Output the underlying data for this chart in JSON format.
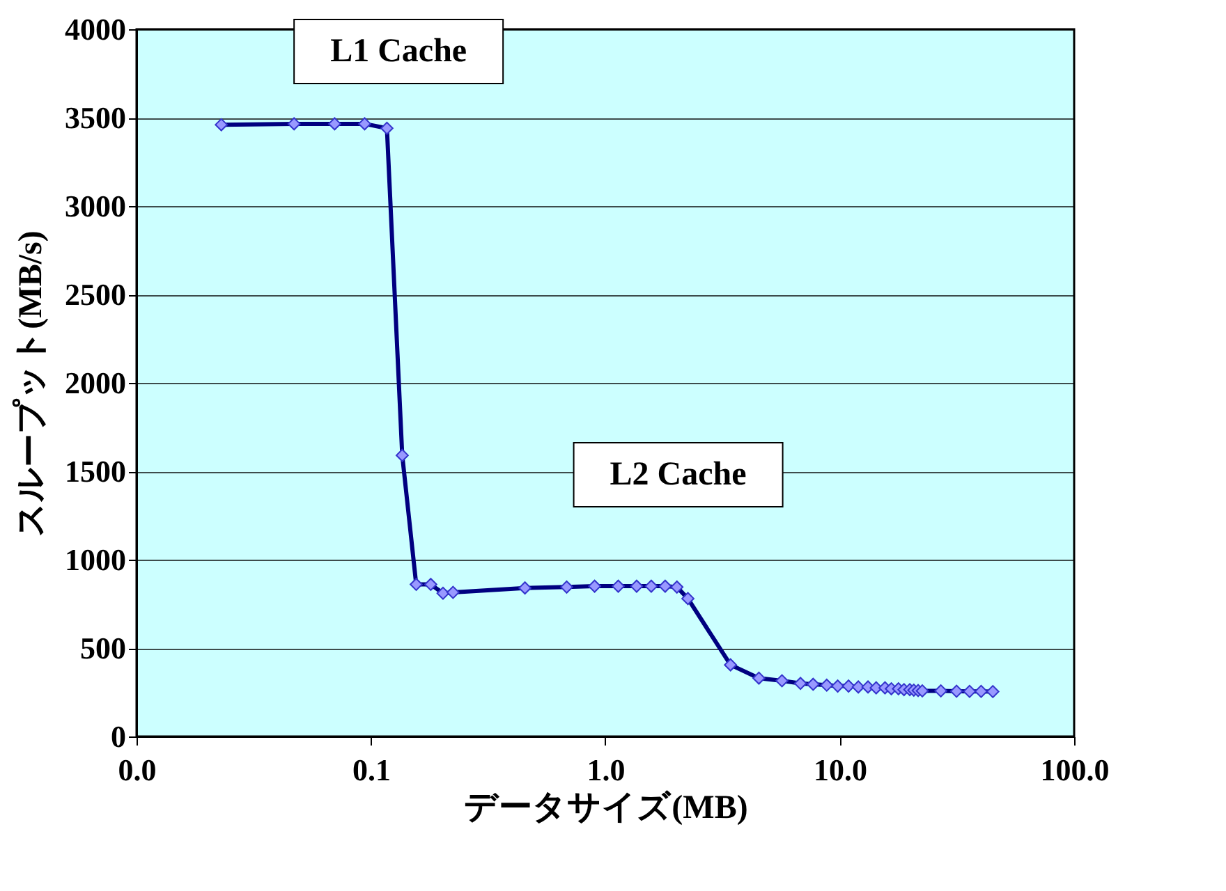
{
  "chart_data": {
    "type": "line",
    "xlabel": "データサイズ(MB)",
    "ylabel": "スループット(MB/s)",
    "x": [
      0.023,
      0.047,
      0.07,
      0.094,
      0.117,
      0.136,
      0.156,
      0.18,
      0.203,
      0.224,
      0.454,
      0.684,
      0.9,
      1.135,
      1.36,
      1.57,
      1.8,
      2.02,
      2.25,
      3.42,
      4.52,
      5.67,
      6.8,
      7.7,
      8.8,
      9.8,
      10.9,
      12.0,
      13.2,
      14.3,
      15.6,
      16.6,
      17.8,
      18.8,
      19.9,
      20.7,
      21.6,
      22.5,
      27.0,
      31.5,
      35.8,
      40.1,
      45.0
    ],
    "series": [
      {
        "color": "#000080",
        "values": [
          3460,
          3465,
          3465,
          3465,
          3440,
          1590,
          860,
          860,
          810,
          815,
          840,
          845,
          850,
          850,
          850,
          850,
          850,
          845,
          780,
          405,
          330,
          315,
          300,
          295,
          290,
          285,
          285,
          280,
          280,
          275,
          275,
          270,
          270,
          265,
          265,
          262,
          260,
          258,
          258,
          256,
          255,
          255,
          254
        ]
      }
    ],
    "xlim": [
      0.01,
      100
    ],
    "ylim": [
      0,
      4000
    ],
    "log": "x",
    "xticks": [
      {
        "value": 0.01,
        "label": "0.0"
      },
      0.1,
      {
        "value": 1,
        "label": "1.0"
      },
      {
        "value": 10,
        "label": "10.0"
      },
      {
        "value": 100,
        "label": "100.0"
      }
    ],
    "yticks": [
      0,
      500,
      1000,
      1500,
      2000,
      2500,
      3000,
      3500,
      4000
    ],
    "grid": "y",
    "marker": "diamond",
    "line_style": "solid",
    "annotations": [
      {
        "text": "L1 Cache",
        "x": 0.047,
        "y": 3465
      },
      {
        "text": "L2 Cache",
        "x": 0.9,
        "y": 850
      }
    ]
  }
}
